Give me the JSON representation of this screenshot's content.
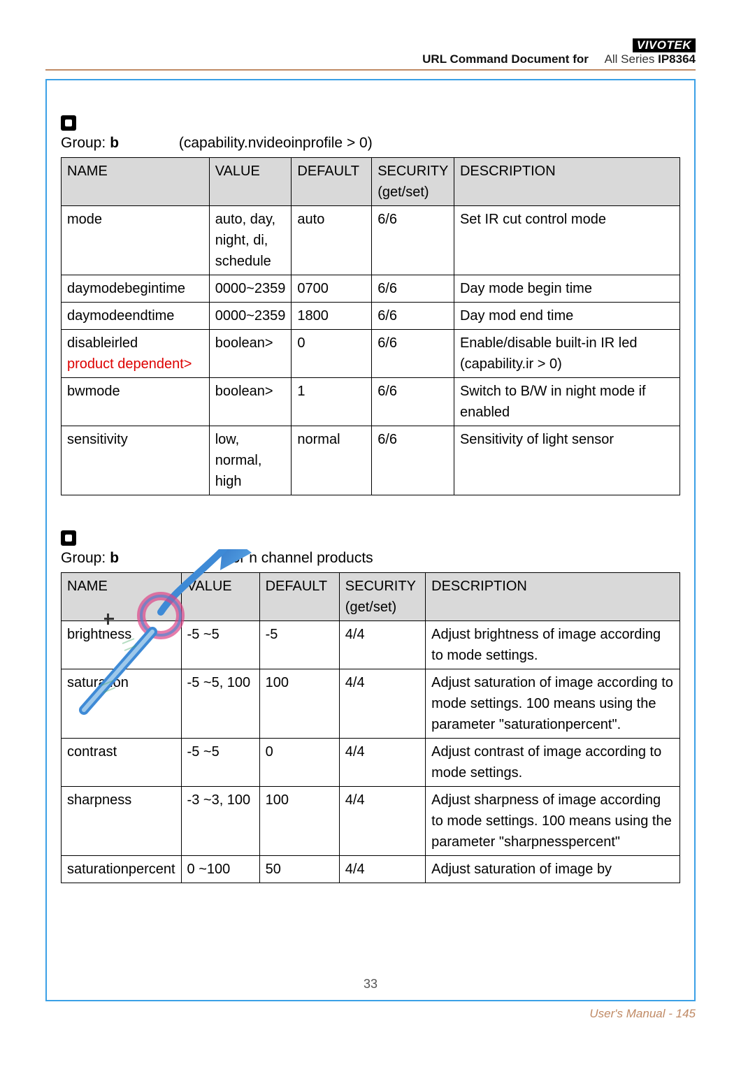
{
  "header": {
    "brand": "VIVOTEK",
    "doc_left": "URL Command Document for",
    "doc_mid": "All Series",
    "doc_right": "IP8364"
  },
  "section1": {
    "group_prefix": "Group:",
    "group_bold": "b",
    "group_after": "(capability.nvideoinprofile > 0)",
    "columns": [
      "NAME",
      "VALUE",
      "DEFAULT",
      "SECURITY (get/set)",
      "DESCRIPTION"
    ],
    "rows": [
      {
        "name": "mode",
        "name_red": "",
        "value": "auto, day, night, di, schedule",
        "default": "auto",
        "security": "6/6",
        "desc": "Set IR cut control mode"
      },
      {
        "name": "daymodebegintime",
        "name_red": "",
        "value": "0000~2359",
        "default": "0700",
        "security": "6/6",
        "desc": "Day mode begin time"
      },
      {
        "name": "daymodeendtime",
        "name_red": "",
        "value": "0000~2359",
        "default": "1800",
        "security": "6/6",
        "desc": "Day mod end time"
      },
      {
        "name": "disableirled",
        "name_red": "product dependent>",
        "value": "boolean>",
        "default": "0",
        "security": "6/6",
        "desc": "Enable/disable built-in IR led (capability.ir > 0)"
      },
      {
        "name": "bwmode",
        "name_red": "",
        "value": "boolean>",
        "default": "1",
        "security": "6/6",
        "desc": "Switch to B/W in night mode if enabled"
      },
      {
        "name": "sensitivity",
        "name_red": "",
        "value": "low, normal, high",
        "default": "normal",
        "security": "6/6",
        "desc": "Sensitivity of light sensor"
      }
    ]
  },
  "section2": {
    "group_prefix": "Group:",
    "group_bold": "b",
    "group_after": "for n channel products",
    "columns": [
      "NAME",
      "VALUE",
      "DEFAULT",
      "SECURITY (get/set)",
      "DESCRIPTION"
    ],
    "rows": [
      {
        "name": "brightness",
        "value": "-5 ~5",
        "default": "-5",
        "security": "4/4",
        "desc": "Adjust brightness of image according to mode settings."
      },
      {
        "name": "saturation",
        "value": "-5 ~5, 100",
        "default": "100",
        "security": "4/4",
        "desc": "Adjust saturation of image according to mode settings. 100 means using the parameter \"saturationpercent\"."
      },
      {
        "name": "contrast",
        "value": "-5 ~5",
        "default": "0",
        "security": "4/4",
        "desc": "Adjust contrast of image according to mode settings."
      },
      {
        "name": "sharpness",
        "value": "-3 ~3, 100",
        "default": "100",
        "security": "4/4",
        "desc": "Adjust sharpness of image according to mode settings. 100 means using the parameter \"sharpnesspercent\""
      },
      {
        "name": "saturationpercent",
        "value": "0 ~100",
        "default": "50",
        "security": "4/4",
        "desc": "Adjust saturation of image by"
      }
    ]
  },
  "footer": {
    "inner_page": "33",
    "outer_page": "User's Manual - 145"
  },
  "colors": {
    "frame_border": "#3ba0e6",
    "accent_rule": "#c08a65",
    "header_bg": "#d9d9d9",
    "red": "#d00"
  },
  "table1_colwidths_pct": [
    24,
    13,
    13,
    13,
    37
  ],
  "table2_colwidths_pct": [
    17,
    13,
    13,
    14,
    43
  ]
}
